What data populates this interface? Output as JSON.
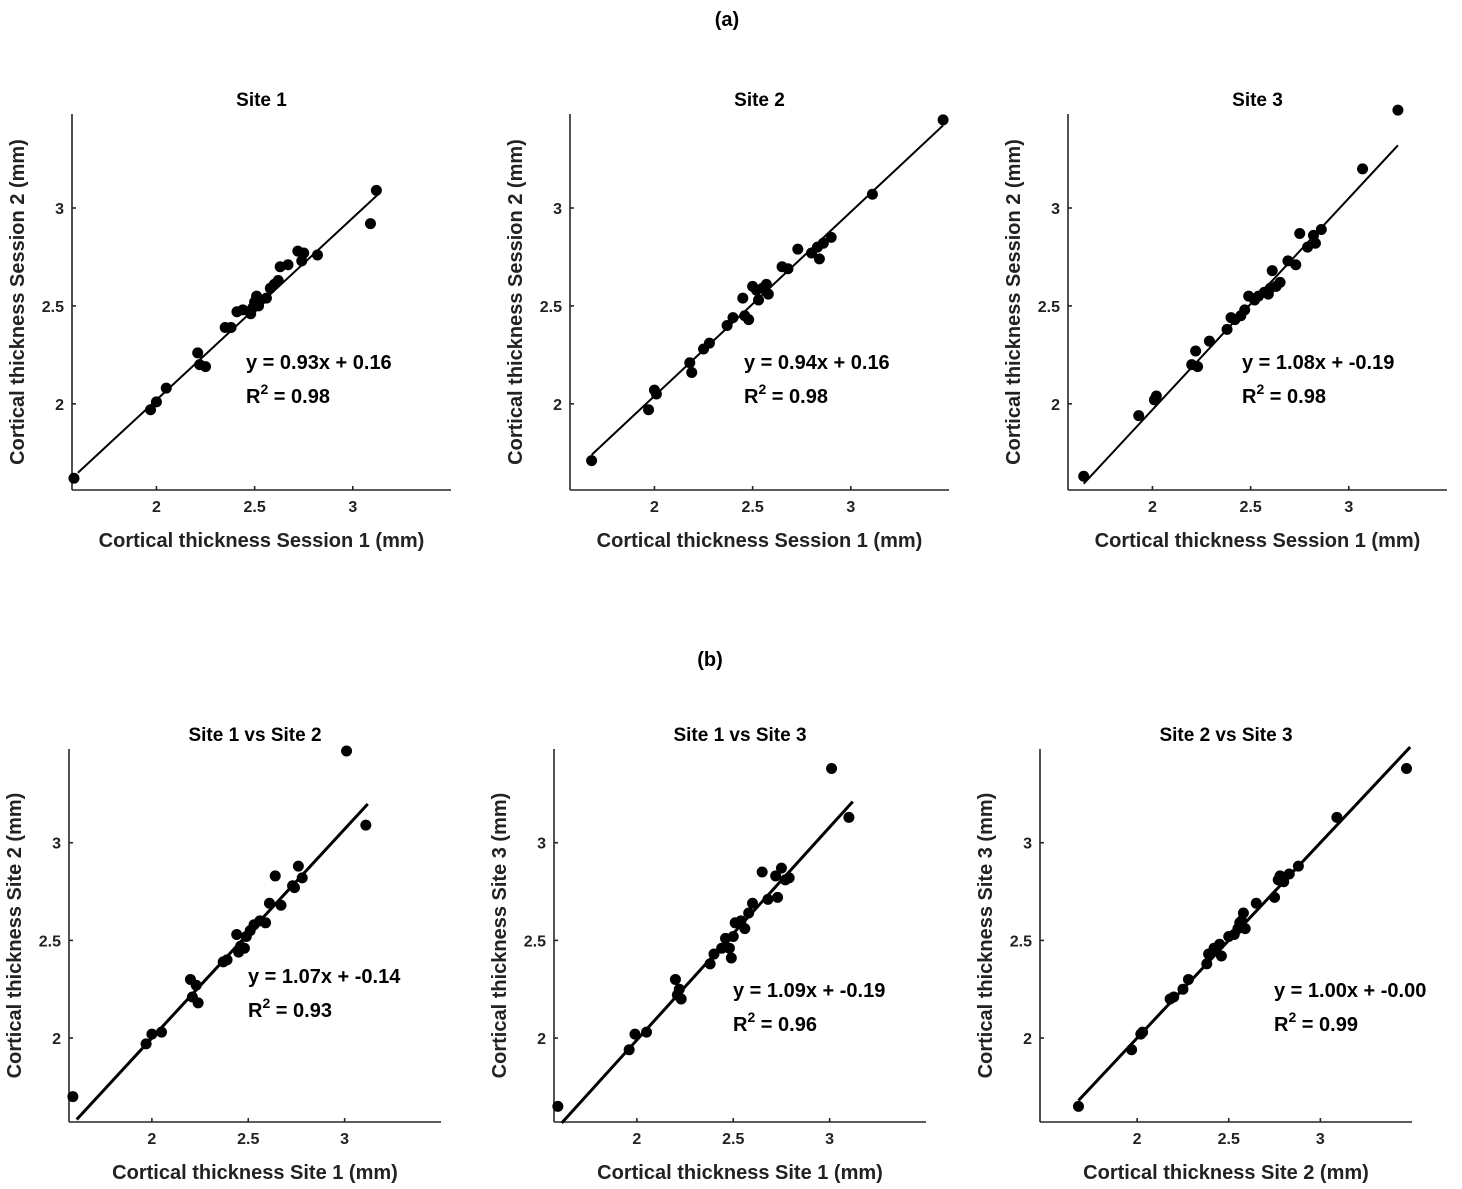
{
  "panel_labels": [
    "(a)",
    "(b)"
  ],
  "chart_data": [
    {
      "type": "scatter",
      "title": "Site 1",
      "xlabel": "Cortical thickness Session 1 (mm)",
      "ylabel": "Cortical thickness Session 2 (mm)",
      "xlim": [
        1.57,
        3.5
      ],
      "ylim": [
        1.56,
        3.48
      ],
      "xticks": [
        2,
        2.5,
        3
      ],
      "yticks": [
        2,
        2.5,
        3
      ],
      "xtick_labels": [
        "2",
        "2.5",
        "3"
      ],
      "ytick_labels": [
        "2",
        "2.5",
        "3"
      ],
      "fit": {
        "slope": 0.93,
        "intercept": 0.16,
        "x_range": [
          1.6,
          3.13
        ]
      },
      "equation": "y = 0.93x + 0.16",
      "r2_label": "R",
      "r2_sup": "2",
      "r2_value": " = 0.98",
      "points": [
        [
          1.58,
          1.62
        ],
        [
          1.97,
          1.97
        ],
        [
          2.0,
          2.01
        ],
        [
          2.05,
          2.08
        ],
        [
          2.21,
          2.26
        ],
        [
          2.22,
          2.2
        ],
        [
          2.25,
          2.19
        ],
        [
          2.35,
          2.39
        ],
        [
          2.38,
          2.39
        ],
        [
          2.41,
          2.47
        ],
        [
          2.44,
          2.48
        ],
        [
          2.48,
          2.46
        ],
        [
          2.49,
          2.49
        ],
        [
          2.5,
          2.52
        ],
        [
          2.51,
          2.55
        ],
        [
          2.52,
          2.5
        ],
        [
          2.53,
          2.53
        ],
        [
          2.56,
          2.54
        ],
        [
          2.58,
          2.59
        ],
        [
          2.6,
          2.61
        ],
        [
          2.62,
          2.63
        ],
        [
          2.63,
          2.7
        ],
        [
          2.67,
          2.71
        ],
        [
          2.72,
          2.78
        ],
        [
          2.74,
          2.73
        ],
        [
          2.75,
          2.77
        ],
        [
          2.82,
          2.76
        ],
        [
          3.09,
          2.92
        ],
        [
          3.12,
          3.09
        ]
      ]
    },
    {
      "type": "scatter",
      "title": "Site 2",
      "xlabel": "Cortical thickness Session 1 (mm)",
      "ylabel": "Cortical thickness Session 2 (mm)",
      "xlim": [
        1.57,
        3.5
      ],
      "ylim": [
        1.56,
        3.48
      ],
      "xticks": [
        2,
        2.5,
        3
      ],
      "yticks": [
        2,
        2.5,
        3
      ],
      "xtick_labels": [
        "2",
        "2.5",
        "3"
      ],
      "ytick_labels": [
        "2",
        "2.5",
        "3"
      ],
      "fit": {
        "slope": 0.94,
        "intercept": 0.16,
        "x_range": [
          1.68,
          3.47
        ]
      },
      "equation": "y = 0.94x + 0.16",
      "r2_label": "R",
      "r2_sup": "2",
      "r2_value": " = 0.98",
      "points": [
        [
          1.68,
          1.71
        ],
        [
          1.97,
          1.97
        ],
        [
          2.0,
          2.07
        ],
        [
          2.01,
          2.05
        ],
        [
          2.18,
          2.21
        ],
        [
          2.19,
          2.16
        ],
        [
          2.25,
          2.28
        ],
        [
          2.28,
          2.31
        ],
        [
          2.37,
          2.4
        ],
        [
          2.4,
          2.44
        ],
        [
          2.45,
          2.54
        ],
        [
          2.46,
          2.45
        ],
        [
          2.48,
          2.43
        ],
        [
          2.5,
          2.6
        ],
        [
          2.52,
          2.58
        ],
        [
          2.53,
          2.53
        ],
        [
          2.55,
          2.59
        ],
        [
          2.57,
          2.61
        ],
        [
          2.58,
          2.56
        ],
        [
          2.65,
          2.7
        ],
        [
          2.68,
          2.69
        ],
        [
          2.73,
          2.79
        ],
        [
          2.8,
          2.77
        ],
        [
          2.83,
          2.8
        ],
        [
          2.84,
          2.74
        ],
        [
          2.86,
          2.82
        ],
        [
          2.9,
          2.85
        ],
        [
          3.11,
          3.07
        ],
        [
          3.47,
          3.45
        ]
      ]
    },
    {
      "type": "scatter",
      "title": "Site 3",
      "xlabel": "Cortical thickness Session 1 (mm)",
      "ylabel": "Cortical thickness Session 2 (mm)",
      "xlim": [
        1.57,
        3.5
      ],
      "ylim": [
        1.56,
        3.48
      ],
      "xticks": [
        2,
        2.5,
        3
      ],
      "yticks": [
        2,
        2.5,
        3
      ],
      "xtick_labels": [
        "2",
        "2.5",
        "3"
      ],
      "ytick_labels": [
        "2",
        "2.5",
        "3"
      ],
      "fit": {
        "slope": 1.08,
        "intercept": -0.19,
        "x_range": [
          1.65,
          3.25
        ]
      },
      "equation": "y = 1.08x + -0.19",
      "r2_label": "R",
      "r2_sup": "2",
      "r2_value": " = 0.98",
      "points": [
        [
          1.65,
          1.63
        ],
        [
          1.93,
          1.94
        ],
        [
          2.01,
          2.02
        ],
        [
          2.02,
          2.04
        ],
        [
          2.2,
          2.2
        ],
        [
          2.22,
          2.27
        ],
        [
          2.23,
          2.19
        ],
        [
          2.29,
          2.32
        ],
        [
          2.38,
          2.38
        ],
        [
          2.4,
          2.44
        ],
        [
          2.42,
          2.43
        ],
        [
          2.45,
          2.45
        ],
        [
          2.47,
          2.48
        ],
        [
          2.49,
          2.55
        ],
        [
          2.52,
          2.53
        ],
        [
          2.54,
          2.55
        ],
        [
          2.57,
          2.57
        ],
        [
          2.59,
          2.56
        ],
        [
          2.6,
          2.59
        ],
        [
          2.61,
          2.68
        ],
        [
          2.63,
          2.6
        ],
        [
          2.65,
          2.62
        ],
        [
          2.69,
          2.73
        ],
        [
          2.73,
          2.71
        ],
        [
          2.75,
          2.87
        ],
        [
          2.79,
          2.8
        ],
        [
          2.82,
          2.86
        ],
        [
          2.83,
          2.82
        ],
        [
          2.86,
          2.89
        ],
        [
          3.07,
          3.2
        ],
        [
          3.25,
          3.5
        ]
      ]
    },
    {
      "type": "scatter",
      "title": "Site 1 vs Site 2",
      "xlabel": "Cortical thickness Site 1 (mm)",
      "ylabel": "Cortical thickness Site 2 (mm)",
      "xlim": [
        1.57,
        3.5
      ],
      "ylim": [
        1.57,
        3.48
      ],
      "xticks": [
        2,
        2.5,
        3
      ],
      "yticks": [
        2,
        2.5,
        3
      ],
      "xtick_labels": [
        "2",
        "2.5",
        "3"
      ],
      "ytick_labels": [
        "2",
        "2.5",
        "3"
      ],
      "fit": {
        "slope": 1.07,
        "intercept": -0.14,
        "x_range": [
          1.61,
          3.12
        ]
      },
      "equation": "y = 1.07x + -0.14",
      "r2_label": "R",
      "r2_sup": "2",
      "r2_value": " = 0.93",
      "points": [
        [
          1.59,
          1.7
        ],
        [
          1.97,
          1.97
        ],
        [
          2.0,
          2.02
        ],
        [
          2.05,
          2.03
        ],
        [
          2.2,
          2.3
        ],
        [
          2.21,
          2.21
        ],
        [
          2.23,
          2.27
        ],
        [
          2.24,
          2.18
        ],
        [
          2.37,
          2.39
        ],
        [
          2.39,
          2.4
        ],
        [
          2.44,
          2.53
        ],
        [
          2.45,
          2.44
        ],
        [
          2.46,
          2.47
        ],
        [
          2.48,
          2.46
        ],
        [
          2.49,
          2.52
        ],
        [
          2.51,
          2.55
        ],
        [
          2.53,
          2.58
        ],
        [
          2.56,
          2.6
        ],
        [
          2.59,
          2.59
        ],
        [
          2.61,
          2.69
        ],
        [
          2.64,
          2.83
        ],
        [
          2.67,
          2.68
        ],
        [
          2.73,
          2.78
        ],
        [
          2.74,
          2.77
        ],
        [
          2.76,
          2.88
        ],
        [
          2.78,
          2.82
        ],
        [
          3.01,
          3.47
        ],
        [
          3.11,
          3.09
        ]
      ]
    },
    {
      "type": "scatter",
      "title": "Site 1 vs Site 3",
      "xlabel": "Cortical thickness Site 1 (mm)",
      "ylabel": "Cortical thickness Site 3 (mm)",
      "xlim": [
        1.57,
        3.5
      ],
      "ylim": [
        1.57,
        3.48
      ],
      "xticks": [
        2,
        2.5,
        3
      ],
      "yticks": [
        2,
        2.5,
        3
      ],
      "xtick_labels": [
        "2",
        "2.5",
        "3"
      ],
      "ytick_labels": [
        "2",
        "2.5",
        "3"
      ],
      "fit": {
        "slope": 1.09,
        "intercept": -0.19,
        "x_range": [
          1.61,
          3.12
        ]
      },
      "equation": "y = 1.09x + -0.19",
      "r2_label": "R",
      "r2_sup": "2",
      "r2_value": " = 0.96",
      "points": [
        [
          1.59,
          1.65
        ],
        [
          1.96,
          1.94
        ],
        [
          1.99,
          2.02
        ],
        [
          2.05,
          2.03
        ],
        [
          2.2,
          2.3
        ],
        [
          2.21,
          2.22
        ],
        [
          2.22,
          2.25
        ],
        [
          2.23,
          2.2
        ],
        [
          2.38,
          2.38
        ],
        [
          2.4,
          2.43
        ],
        [
          2.44,
          2.46
        ],
        [
          2.46,
          2.51
        ],
        [
          2.48,
          2.46
        ],
        [
          2.49,
          2.41
        ],
        [
          2.5,
          2.52
        ],
        [
          2.51,
          2.59
        ],
        [
          2.54,
          2.6
        ],
        [
          2.56,
          2.56
        ],
        [
          2.58,
          2.64
        ],
        [
          2.6,
          2.69
        ],
        [
          2.65,
          2.85
        ],
        [
          2.68,
          2.71
        ],
        [
          2.72,
          2.83
        ],
        [
          2.73,
          2.72
        ],
        [
          2.75,
          2.87
        ],
        [
          2.77,
          2.81
        ],
        [
          2.79,
          2.82
        ],
        [
          3.01,
          3.38
        ],
        [
          3.1,
          3.13
        ]
      ]
    },
    {
      "type": "scatter",
      "title": "Site 2 vs Site 3",
      "xlabel": "Cortical thickness Site 2 (mm)",
      "ylabel": "Cortical thickness Site 3 (mm)",
      "xlim": [
        1.47,
        3.5
      ],
      "ylim": [
        1.57,
        3.48
      ],
      "xticks": [
        2,
        2.5,
        3
      ],
      "yticks": [
        2,
        2.5,
        3
      ],
      "xtick_labels": [
        "2",
        "2.5",
        "3"
      ],
      "ytick_labels": [
        "2",
        "2.5",
        "3"
      ],
      "fit": {
        "slope": 1.0,
        "intercept": 0.0,
        "x_range": [
          1.68,
          3.49
        ]
      },
      "equation": "y = 1.00x + -0.00",
      "r2_label": "R",
      "r2_sup": "2",
      "r2_value": " = 0.99",
      "points": [
        [
          1.68,
          1.65
        ],
        [
          1.97,
          1.94
        ],
        [
          2.02,
          2.02
        ],
        [
          2.03,
          2.03
        ],
        [
          2.18,
          2.2
        ],
        [
          2.2,
          2.21
        ],
        [
          2.25,
          2.25
        ],
        [
          2.28,
          2.3
        ],
        [
          2.38,
          2.38
        ],
        [
          2.39,
          2.43
        ],
        [
          2.42,
          2.46
        ],
        [
          2.45,
          2.48
        ],
        [
          2.46,
          2.42
        ],
        [
          2.5,
          2.52
        ],
        [
          2.53,
          2.53
        ],
        [
          2.55,
          2.56
        ],
        [
          2.56,
          2.59
        ],
        [
          2.57,
          2.6
        ],
        [
          2.58,
          2.64
        ],
        [
          2.59,
          2.56
        ],
        [
          2.65,
          2.69
        ],
        [
          2.75,
          2.72
        ],
        [
          2.77,
          2.81
        ],
        [
          2.78,
          2.83
        ],
        [
          2.8,
          2.8
        ],
        [
          2.83,
          2.84
        ],
        [
          2.88,
          2.88
        ],
        [
          3.09,
          3.13
        ],
        [
          3.47,
          3.38
        ]
      ]
    }
  ]
}
